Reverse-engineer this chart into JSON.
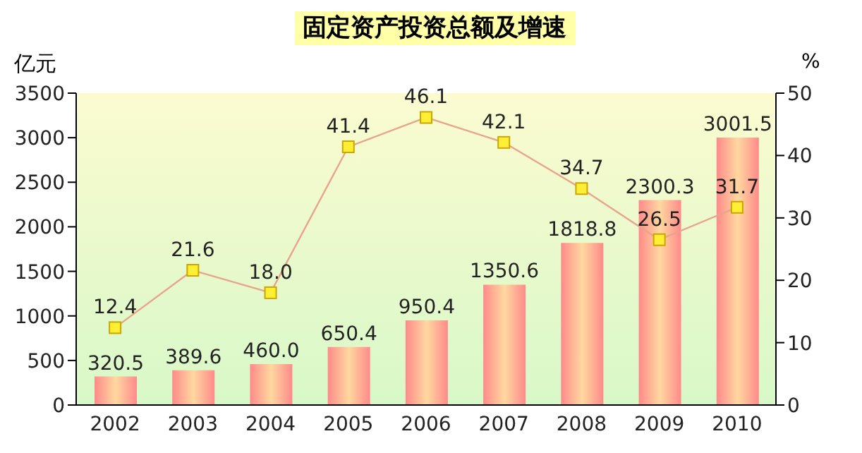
{
  "chart_data": {
    "type": "bar",
    "title": "固定资产投资总额及增速",
    "ylabel": "亿元",
    "y2label": "%",
    "categories": [
      "2002",
      "2003",
      "2004",
      "2005",
      "2006",
      "2007",
      "2008",
      "2009",
      "2010"
    ],
    "series": [
      {
        "color": "#ff8a8a",
        "values": [
          320.5,
          389.6,
          460.0,
          650.4,
          950.4,
          1350.6,
          1818.8,
          2300.3,
          3001.5
        ],
        "value_labels": [
          "320.5",
          "389.6",
          "460.0",
          "650.4",
          "950.4",
          "1350.6",
          "1818.8",
          "2300.3",
          "3001.5"
        ]
      },
      {
        "type": "line",
        "axis": "y2",
        "color": "#e8a48c",
        "marker": "square",
        "values": [
          12.4,
          21.6,
          18.0,
          41.4,
          46.1,
          42.1,
          34.7,
          26.5,
          31.7
        ],
        "value_labels": [
          "12.4",
          "21.6",
          "18.0",
          "41.4",
          "46.1",
          "42.1",
          "34.7",
          "26.5",
          "31.7"
        ]
      }
    ],
    "ylim": [
      0,
      3500
    ],
    "yticks": [
      0,
      500,
      1000,
      1500,
      2000,
      2500,
      3000,
      3500
    ],
    "y2lim": [
      0,
      50
    ],
    "y2ticks": [
      0,
      10,
      20,
      30,
      40,
      50
    ],
    "grid": false,
    "legend": false
  }
}
